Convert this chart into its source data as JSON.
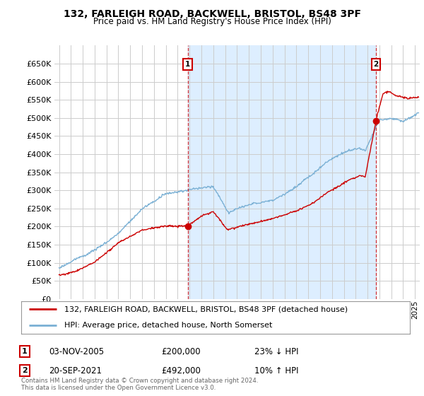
{
  "title": "132, FARLEIGH ROAD, BACKWELL, BRISTOL, BS48 3PF",
  "subtitle": "Price paid vs. HM Land Registry's House Price Index (HPI)",
  "legend_line1": "132, FARLEIGH ROAD, BACKWELL, BRISTOL, BS48 3PF (detached house)",
  "legend_line2": "HPI: Average price, detached house, North Somerset",
  "annotation1_date": "03-NOV-2005",
  "annotation1_price": "£200,000",
  "annotation1_hpi": "23% ↓ HPI",
  "annotation2_date": "20-SEP-2021",
  "annotation2_price": "£492,000",
  "annotation2_hpi": "10% ↑ HPI",
  "footnote": "Contains HM Land Registry data © Crown copyright and database right 2024.\nThis data is licensed under the Open Government Licence v3.0.",
  "red_color": "#cc0000",
  "blue_color": "#7ab0d4",
  "shade_color": "#ddeeff",
  "grid_color": "#cccccc",
  "background_color": "#ffffff",
  "ylim": [
    0,
    700000
  ],
  "yticks": [
    0,
    50000,
    100000,
    150000,
    200000,
    250000,
    300000,
    350000,
    400000,
    450000,
    500000,
    550000,
    600000,
    650000
  ],
  "sale1_year": 2005.84,
  "sale1_value": 200000,
  "sale2_year": 2021.72,
  "sale2_value": 492000,
  "xmin": 1994.6,
  "xmax": 2025.4
}
